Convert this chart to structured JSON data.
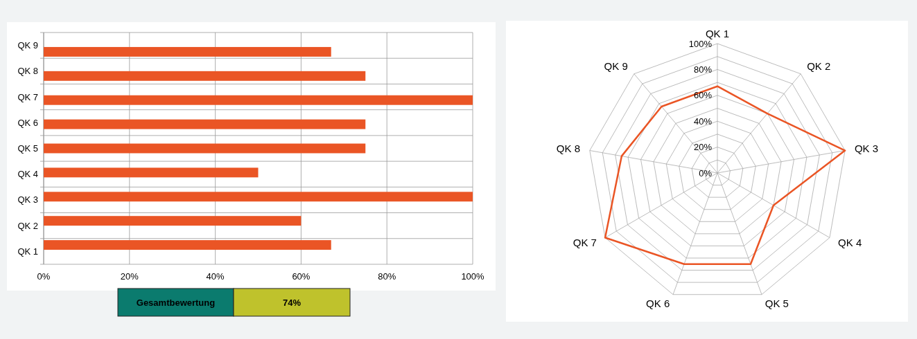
{
  "chart_data": [
    {
      "type": "bar",
      "orientation": "horizontal",
      "categories": [
        "QK 9",
        "QK 8",
        "QK 7",
        "QK 6",
        "QK 5",
        "QK 4",
        "QK 3",
        "QK 2",
        "QK 1"
      ],
      "values": [
        67,
        75,
        100,
        75,
        75,
        50,
        100,
        60,
        67
      ],
      "color": "#ea5525",
      "xlim": [
        0,
        100
      ],
      "xticks": [
        {
          "value": 0,
          "label": "0%"
        },
        {
          "value": 20,
          "label": "20%"
        },
        {
          "value": 40,
          "label": "40%"
        },
        {
          "value": 60,
          "label": "60%"
        },
        {
          "value": 80,
          "label": "80%"
        },
        {
          "value": 100,
          "label": "100%"
        }
      ],
      "grid": true
    },
    {
      "type": "radar",
      "categories": [
        "QK 1",
        "QK 2",
        "QK 3",
        "QK 4",
        "QK 5",
        "QK 6",
        "QK 7",
        "QK 8",
        "QK 9"
      ],
      "series": [
        {
          "color": "#ea5525",
          "values": [
            67,
            60,
            100,
            50,
            75,
            75,
            100,
            75,
            67
          ]
        }
      ],
      "ylim": [
        0,
        100
      ],
      "yticks": [
        {
          "value": 0,
          "label": "0%"
        },
        {
          "value": 20,
          "label": "20%"
        },
        {
          "value": 40,
          "label": "40%"
        },
        {
          "value": 60,
          "label": "60%"
        },
        {
          "value": 80,
          "label": "80%"
        },
        {
          "value": 100,
          "label": "100%"
        }
      ],
      "grid": true,
      "marker": "none"
    },
    {
      "type": "other",
      "title": "Gesamtbewertung",
      "annotations": [
        "74%"
      ],
      "colors": [
        "#0b7b6e",
        "#bfc22c"
      ]
    }
  ]
}
